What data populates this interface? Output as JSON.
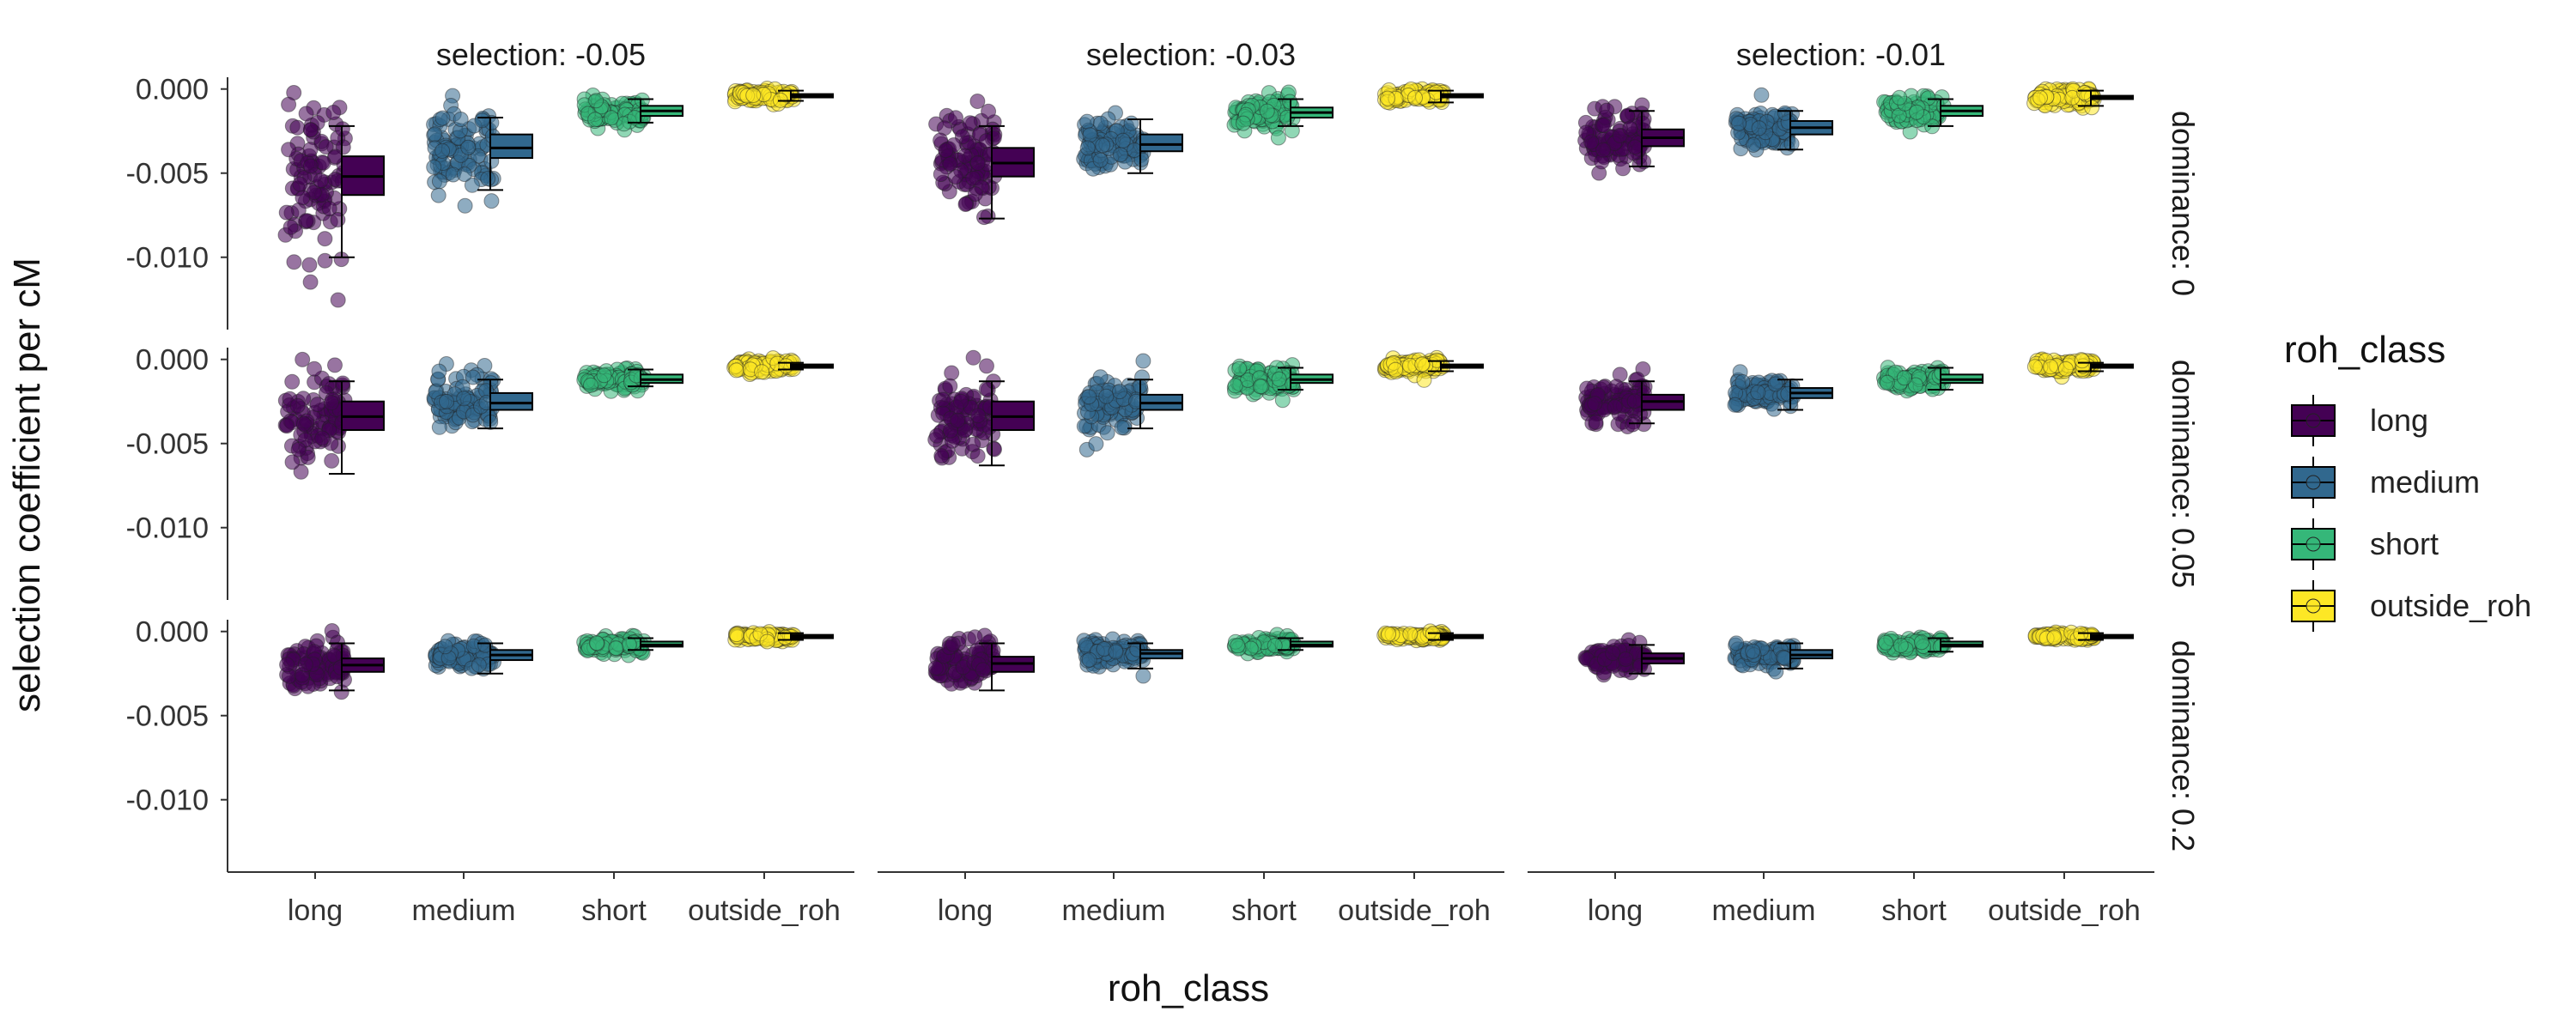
{
  "chart_data": {
    "type": "scatter",
    "subtype": "jitter points with boxplots, faceted grid",
    "xlabel": "roh_class",
    "ylabel": "selection coefficient per cM",
    "categories": [
      "long",
      "medium",
      "short",
      "outside_roh"
    ],
    "y_ticks": [
      0.0,
      -0.005,
      -0.01
    ],
    "y_tick_labels": [
      "0.000",
      "-0.005",
      "-0.010"
    ],
    "ylim": [
      -0.0143,
      0.0007
    ],
    "facet_cols": [
      "selection: -0.05",
      "selection: -0.03",
      "selection: -0.01"
    ],
    "facet_rows": [
      "dominance: 0",
      "dominance: 0.05",
      "dominance: 0.2"
    ],
    "colors": {
      "long": "#440154",
      "medium": "#31688e",
      "short": "#35b779",
      "outside_roh": "#fde725"
    },
    "legend": {
      "title": "roh_class",
      "position": "right",
      "items": [
        "long",
        "medium",
        "short",
        "outside_roh"
      ]
    },
    "grid": false,
    "panels": [
      {
        "col": 0,
        "row": 0,
        "box": [
          {
            "class": "long",
            "min": -0.01,
            "q1": -0.0063,
            "median": -0.0052,
            "q3": -0.004,
            "max": -0.0022,
            "jitter_sd": 0.0021
          },
          {
            "class": "medium",
            "min": -0.006,
            "q1": -0.0041,
            "median": -0.0035,
            "q3": -0.0027,
            "max": -0.0017,
            "jitter_sd": 0.0013
          },
          {
            "class": "short",
            "min": -0.002,
            "q1": -0.0016,
            "median": -0.0013,
            "q3": -0.001,
            "max": -0.0006,
            "jitter_sd": 0.0004
          },
          {
            "class": "outside_roh",
            "min": -0.0007,
            "q1": -0.0005,
            "median": -0.0004,
            "q3": -0.0003,
            "max": -0.0001,
            "jitter_sd": 0.0002
          }
        ]
      },
      {
        "col": 1,
        "row": 0,
        "box": [
          {
            "class": "long",
            "min": -0.0077,
            "q1": -0.0052,
            "median": -0.0044,
            "q3": -0.0035,
            "max": -0.0022,
            "jitter_sd": 0.0015
          },
          {
            "class": "medium",
            "min": -0.005,
            "q1": -0.0037,
            "median": -0.0033,
            "q3": -0.0027,
            "max": -0.0018,
            "jitter_sd": 0.0008
          },
          {
            "class": "short",
            "min": -0.0022,
            "q1": -0.0017,
            "median": -0.0014,
            "q3": -0.0011,
            "max": -0.0006,
            "jitter_sd": 0.0004
          },
          {
            "class": "outside_roh",
            "min": -0.0008,
            "q1": -0.0005,
            "median": -0.0004,
            "q3": -0.0003,
            "max": -0.0001,
            "jitter_sd": 0.0002
          }
        ]
      },
      {
        "col": 2,
        "row": 0,
        "box": [
          {
            "class": "long",
            "min": -0.0046,
            "q1": -0.0034,
            "median": -0.0029,
            "q3": -0.0024,
            "max": -0.0013,
            "jitter_sd": 0.0008
          },
          {
            "class": "medium",
            "min": -0.0036,
            "q1": -0.0027,
            "median": -0.0023,
            "q3": -0.0019,
            "max": -0.0013,
            "jitter_sd": 0.0005
          },
          {
            "class": "short",
            "min": -0.0022,
            "q1": -0.0016,
            "median": -0.0013,
            "q3": -0.001,
            "max": -0.0006,
            "jitter_sd": 0.0004
          },
          {
            "class": "outside_roh",
            "min": -0.001,
            "q1": -0.0006,
            "median": -0.0005,
            "q3": -0.0004,
            "max": -0.0001,
            "jitter_sd": 0.0003
          }
        ]
      },
      {
        "col": 0,
        "row": 1,
        "box": [
          {
            "class": "long",
            "min": -0.0068,
            "q1": -0.0042,
            "median": -0.0034,
            "q3": -0.0025,
            "max": -0.0013,
            "jitter_sd": 0.0013
          },
          {
            "class": "medium",
            "min": -0.0041,
            "q1": -0.003,
            "median": -0.0026,
            "q3": -0.002,
            "max": -0.0012,
            "jitter_sd": 0.0008
          },
          {
            "class": "short",
            "min": -0.0016,
            "q1": -0.0014,
            "median": -0.0012,
            "q3": -0.0009,
            "max": -0.0006,
            "jitter_sd": 0.0003
          },
          {
            "class": "outside_roh",
            "min": -0.0006,
            "q1": -0.0005,
            "median": -0.0004,
            "q3": -0.0003,
            "max": -0.0002,
            "jitter_sd": 0.0002
          }
        ]
      },
      {
        "col": 1,
        "row": 1,
        "box": [
          {
            "class": "long",
            "min": -0.0063,
            "q1": -0.0042,
            "median": -0.0034,
            "q3": -0.0025,
            "max": -0.0013,
            "jitter_sd": 0.0012
          },
          {
            "class": "medium",
            "min": -0.0041,
            "q1": -0.003,
            "median": -0.0026,
            "q3": -0.0021,
            "max": -0.0012,
            "jitter_sd": 0.0008
          },
          {
            "class": "short",
            "min": -0.0018,
            "q1": -0.0014,
            "median": -0.0012,
            "q3": -0.0009,
            "max": -0.0005,
            "jitter_sd": 0.0004
          },
          {
            "class": "outside_roh",
            "min": -0.0007,
            "q1": -0.0005,
            "median": -0.0004,
            "q3": -0.0003,
            "max": -0.0001,
            "jitter_sd": 0.0002
          }
        ]
      },
      {
        "col": 2,
        "row": 1,
        "box": [
          {
            "class": "long",
            "min": -0.0038,
            "q1": -0.003,
            "median": -0.0025,
            "q3": -0.0021,
            "max": -0.0013,
            "jitter_sd": 0.0007
          },
          {
            "class": "medium",
            "min": -0.003,
            "q1": -0.0023,
            "median": -0.002,
            "q3": -0.0017,
            "max": -0.0012,
            "jitter_sd": 0.0004
          },
          {
            "class": "short",
            "min": -0.0018,
            "q1": -0.0014,
            "median": -0.0012,
            "q3": -0.0009,
            "max": -0.0005,
            "jitter_sd": 0.0003
          },
          {
            "class": "outside_roh",
            "min": -0.0007,
            "q1": -0.0005,
            "median": -0.0004,
            "q3": -0.0003,
            "max": -0.0002,
            "jitter_sd": 0.0002
          }
        ]
      },
      {
        "col": 0,
        "row": 2,
        "box": [
          {
            "class": "long",
            "min": -0.0035,
            "q1": -0.0024,
            "median": -0.002,
            "q3": -0.0016,
            "max": -0.0007,
            "jitter_sd": 0.0007
          },
          {
            "class": "medium",
            "min": -0.0025,
            "q1": -0.0017,
            "median": -0.0014,
            "q3": -0.0011,
            "max": -0.0007,
            "jitter_sd": 0.0004
          },
          {
            "class": "short",
            "min": -0.0011,
            "q1": -0.0009,
            "median": -0.0008,
            "q3": -0.0006,
            "max": -0.0004,
            "jitter_sd": 0.0002
          },
          {
            "class": "outside_roh",
            "min": -0.0005,
            "q1": -0.0004,
            "median": -0.0003,
            "q3": -0.0002,
            "max": -0.0001,
            "jitter_sd": 0.0001
          }
        ]
      },
      {
        "col": 1,
        "row": 2,
        "box": [
          {
            "class": "long",
            "min": -0.0035,
            "q1": -0.0024,
            "median": -0.0019,
            "q3": -0.0015,
            "max": -0.0007,
            "jitter_sd": 0.0007
          },
          {
            "class": "medium",
            "min": -0.0022,
            "q1": -0.0016,
            "median": -0.0013,
            "q3": -0.0011,
            "max": -0.0007,
            "jitter_sd": 0.0004
          },
          {
            "class": "short",
            "min": -0.0011,
            "q1": -0.0009,
            "median": -0.0008,
            "q3": -0.0006,
            "max": -0.0004,
            "jitter_sd": 0.0002
          },
          {
            "class": "outside_roh",
            "min": -0.0005,
            "q1": -0.0004,
            "median": -0.0003,
            "q3": -0.0002,
            "max": -0.0001,
            "jitter_sd": 0.0001
          }
        ]
      },
      {
        "col": 2,
        "row": 2,
        "box": [
          {
            "class": "long",
            "min": -0.0025,
            "q1": -0.0019,
            "median": -0.0016,
            "q3": -0.0013,
            "max": -0.0008,
            "jitter_sd": 0.0004
          },
          {
            "class": "medium",
            "min": -0.0022,
            "q1": -0.0016,
            "median": -0.0014,
            "q3": -0.0011,
            "max": -0.0007,
            "jitter_sd": 0.0003
          },
          {
            "class": "short",
            "min": -0.0012,
            "q1": -0.0009,
            "median": -0.0008,
            "q3": -0.0006,
            "max": -0.0004,
            "jitter_sd": 0.0002
          },
          {
            "class": "outside_roh",
            "min": -0.0005,
            "q1": -0.0004,
            "median": -0.0003,
            "q3": -0.0002,
            "max": -0.0001,
            "jitter_sd": 0.0001
          }
        ]
      }
    ]
  }
}
